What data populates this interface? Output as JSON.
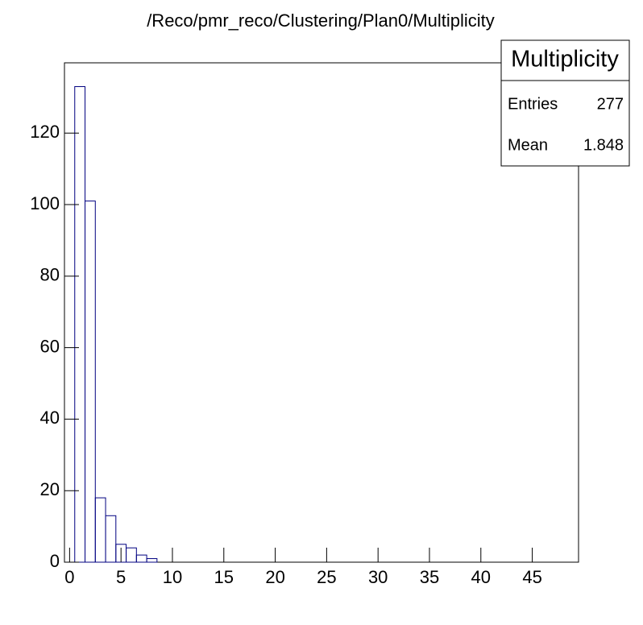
{
  "chart_data": {
    "type": "histogram",
    "title": "/Reco/pmr_reco/Clustering/Plan0/Multiplicity",
    "bins": [
      -0.5,
      0.5,
      1.5,
      2.5,
      3.5,
      4.5,
      5.5,
      6.5,
      7.5,
      8.5,
      9.5,
      10.5,
      11.5,
      12.5,
      13.5,
      14.5,
      15.5,
      16.5,
      17.5,
      18.5,
      19.5,
      20.5,
      21.5,
      22.5,
      23.5,
      24.5,
      25.5,
      26.5,
      27.5,
      28.5,
      29.5,
      30.5,
      31.5,
      32.5,
      33.5,
      34.5,
      35.5,
      36.5,
      37.5,
      38.5,
      39.5,
      40.5,
      41.5,
      42.5,
      43.5,
      44.5,
      45.5,
      46.5,
      47.5,
      48.5,
      49.5
    ],
    "values": [
      0,
      133,
      101,
      18,
      13,
      5,
      4,
      2,
      1,
      0,
      0,
      0,
      0,
      0,
      0,
      0,
      0,
      0,
      0,
      0,
      0,
      0,
      0,
      0,
      0,
      0,
      0,
      0,
      0,
      0,
      0,
      0,
      0,
      0,
      0,
      0,
      0,
      0,
      0,
      0,
      0,
      0,
      0,
      0,
      0,
      0,
      0,
      0,
      0,
      0
    ],
    "color": "#000080",
    "xlim": [
      -0.5,
      49.5
    ],
    "xticks": [
      0,
      5,
      10,
      15,
      20,
      25,
      30,
      35,
      40,
      45
    ],
    "ylim": [
      0,
      139.65
    ],
    "yticks": [
      0,
      20,
      40,
      60,
      80,
      100,
      120
    ],
    "stats": {
      "title": "Multiplicity",
      "entries_label": "Entries",
      "entries": 277,
      "mean_label": "Mean",
      "mean": 1.848
    }
  }
}
